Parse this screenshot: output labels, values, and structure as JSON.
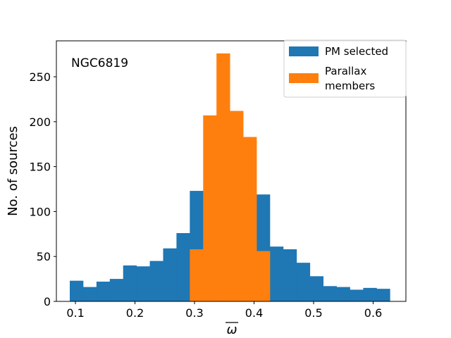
{
  "chart_data": {
    "type": "histogram",
    "annotation": "NGC6819",
    "xlabel": "ω",
    "ylabel": "No. of sources",
    "xlim": [
      0.068,
      0.655
    ],
    "ylim": [
      0,
      290
    ],
    "xticks": [
      0.1,
      0.2,
      0.3,
      0.4,
      0.5,
      0.6
    ],
    "xtick_labels": [
      "0.1",
      "0.2",
      "0.3",
      "0.4",
      "0.5",
      "0.6"
    ],
    "yticks": [
      0,
      50,
      100,
      150,
      200,
      250
    ],
    "ytick_labels": [
      "0",
      "50",
      "100",
      "150",
      "200",
      "250"
    ],
    "legend_position": "top-right",
    "bin_edges": [
      0.0905,
      0.1129,
      0.1353,
      0.1577,
      0.1801,
      0.2025,
      0.2249,
      0.2473,
      0.2697,
      0.2921,
      0.3145,
      0.3369,
      0.3593,
      0.3817,
      0.4041,
      0.4265,
      0.4489,
      0.4713,
      0.4937,
      0.5161,
      0.5385,
      0.5609,
      0.5833,
      0.6057,
      0.6281
    ],
    "series": [
      {
        "name": "PM selected",
        "color": "#1f77b4",
        "values": [
          23,
          16,
          22,
          25,
          40,
          39,
          45,
          59,
          76,
          123,
          120,
          118,
          115,
          117,
          119,
          61,
          58,
          43,
          28,
          17,
          16,
          13,
          15,
          14
        ]
      },
      {
        "name": "Parallax members",
        "color": "#ff7f0e",
        "legend_lines": [
          "Parallax",
          "members"
        ],
        "values": [
          0,
          0,
          0,
          0,
          0,
          0,
          0,
          0,
          0,
          58,
          207,
          276,
          212,
          183,
          56,
          0,
          0,
          0,
          0,
          0,
          0,
          0,
          0,
          0
        ]
      }
    ]
  }
}
